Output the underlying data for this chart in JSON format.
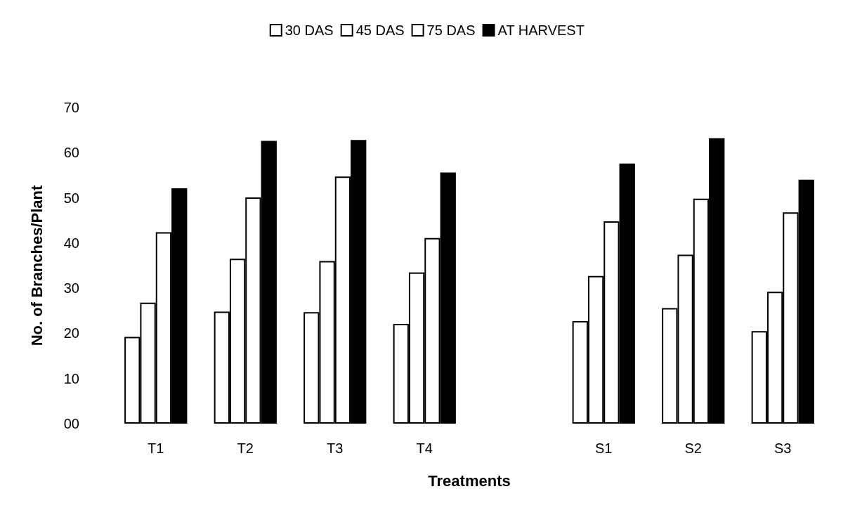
{
  "chart_data": {
    "type": "bar",
    "xlabel": "Treatments",
    "ylabel": "No. of Branches/Plant",
    "categories": [
      "T1",
      "T2",
      "T3",
      "T4",
      null,
      "S1",
      "S2",
      "S3"
    ],
    "series": [
      {
        "name": "30 DAS",
        "color": "#ffffff",
        "values": [
          19.2,
          24.8,
          24.7,
          22.1,
          null,
          22.7,
          25.6,
          20.5
        ]
      },
      {
        "name": "45 DAS",
        "color": "#ffffff",
        "values": [
          26.8,
          36.5,
          36.0,
          33.5,
          null,
          32.7,
          37.4,
          29.2
        ]
      },
      {
        "name": "75 DAS",
        "color": "#ffffff",
        "values": [
          42.4,
          50.1,
          54.7,
          41.1,
          null,
          44.8,
          49.8,
          46.8
        ]
      },
      {
        "name": "AT HARVEST",
        "color": "#000000",
        "values": [
          52.1,
          62.6,
          62.8,
          55.6,
          null,
          57.6,
          63.2,
          54.0
        ]
      }
    ],
    "ylim": [
      0,
      70
    ],
    "yticks": [
      {
        "value": 0,
        "label": "00"
      },
      10,
      20,
      30,
      40,
      50,
      60,
      70
    ],
    "grid": false,
    "legend": "top"
  }
}
